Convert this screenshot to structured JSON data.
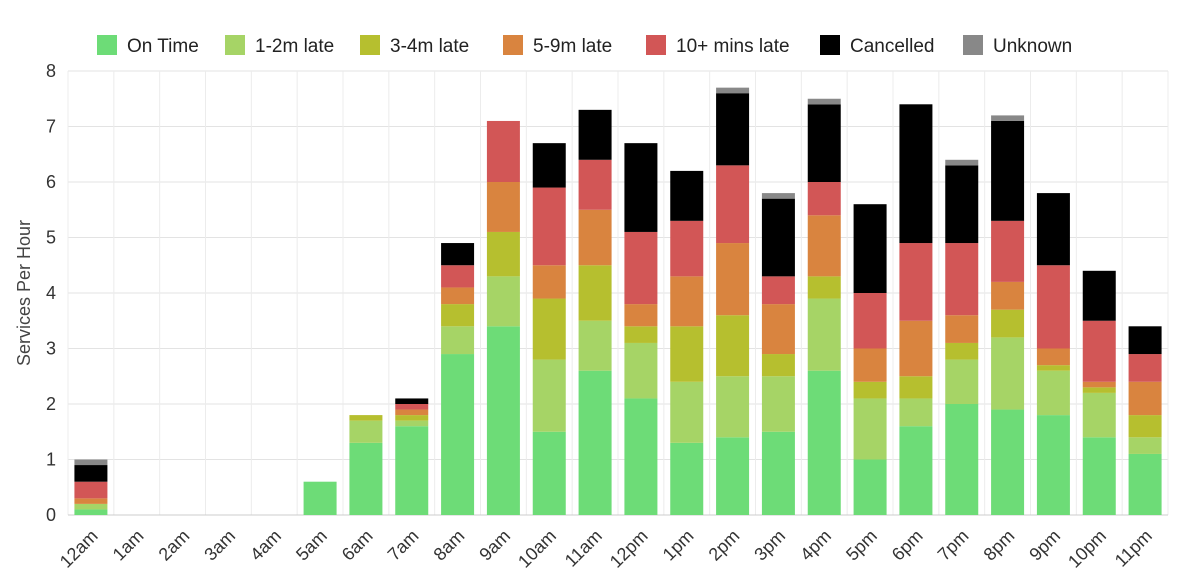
{
  "chart_data": {
    "type": "bar",
    "stacked": true,
    "title": "",
    "xlabel": "",
    "ylabel": "Services Per Hour",
    "ylim": [
      0,
      8
    ],
    "yticks": [
      0,
      1,
      2,
      3,
      4,
      5,
      6,
      7,
      8
    ],
    "grid": true,
    "legend_position": "top",
    "categories": [
      "12am",
      "1am",
      "2am",
      "3am",
      "4am",
      "5am",
      "6am",
      "7am",
      "8am",
      "9am",
      "10am",
      "11am",
      "12pm",
      "1pm",
      "2pm",
      "3pm",
      "4pm",
      "5pm",
      "6pm",
      "7pm",
      "8pm",
      "9pm",
      "10pm",
      "11pm"
    ],
    "series": [
      {
        "name": "On Time",
        "color": "#6ddc77",
        "values": [
          0.1,
          0,
          0,
          0,
          0,
          0.6,
          1.3,
          1.6,
          2.9,
          3.4,
          1.5,
          2.6,
          2.1,
          1.3,
          1.4,
          1.5,
          2.6,
          1.0,
          1.6,
          2.0,
          1.9,
          1.8,
          1.4,
          1.1
        ]
      },
      {
        "name": "1-2m late",
        "color": "#a6d466",
        "values": [
          0.1,
          0,
          0,
          0,
          0,
          0,
          0.4,
          0.1,
          0.5,
          0.9,
          1.3,
          0.9,
          1.0,
          1.1,
          1.1,
          1.0,
          1.3,
          1.1,
          0.5,
          0.8,
          1.3,
          0.8,
          0.8,
          0.3
        ]
      },
      {
        "name": "3-4m late",
        "color": "#b6bf2f",
        "values": [
          0,
          0,
          0,
          0,
          0,
          0,
          0.1,
          0.1,
          0.4,
          0.8,
          1.1,
          1.0,
          0.3,
          1.0,
          1.1,
          0.4,
          0.4,
          0.3,
          0.4,
          0.3,
          0.5,
          0.1,
          0.1,
          0.4
        ]
      },
      {
        "name": "5-9m late",
        "color": "#d9843f",
        "values": [
          0.1,
          0,
          0,
          0,
          0,
          0,
          0,
          0.1,
          0.3,
          0.9,
          0.6,
          1.0,
          0.4,
          0.9,
          1.3,
          0.9,
          1.1,
          0.6,
          1.0,
          0.5,
          0.5,
          0.3,
          0.1,
          0.6
        ]
      },
      {
        "name": "10+ mins late",
        "color": "#d25656",
        "values": [
          0.3,
          0,
          0,
          0,
          0,
          0,
          0,
          0.1,
          0.4,
          1.1,
          1.4,
          0.9,
          1.3,
          1.0,
          1.4,
          0.5,
          0.6,
          1.0,
          1.4,
          1.3,
          1.1,
          1.5,
          1.1,
          0.5
        ]
      },
      {
        "name": "Cancelled",
        "color": "#000000",
        "values": [
          0.3,
          0,
          0,
          0,
          0,
          0,
          0,
          0.1,
          0.4,
          0,
          0.8,
          0.9,
          1.6,
          0.9,
          1.3,
          1.4,
          1.4,
          1.6,
          2.5,
          1.4,
          1.8,
          1.3,
          0.9,
          0.5
        ]
      },
      {
        "name": "Unknown",
        "color": "#888888",
        "values": [
          0.1,
          0,
          0,
          0,
          0,
          0,
          0,
          0,
          0,
          0,
          0,
          0,
          0,
          0,
          0.1,
          0.1,
          0.1,
          0,
          0,
          0.1,
          0.1,
          0,
          0,
          0
        ]
      }
    ]
  }
}
